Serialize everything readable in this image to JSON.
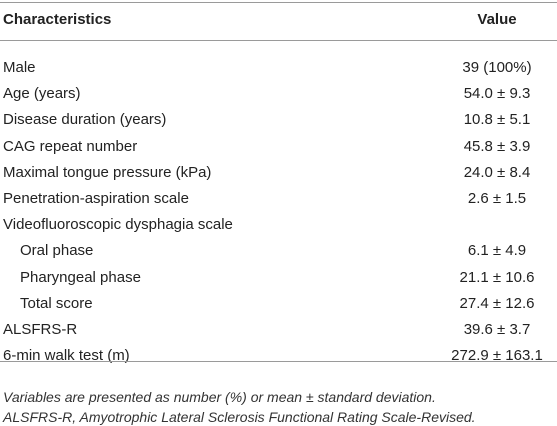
{
  "table": {
    "header": [
      "Characteristics",
      "Value"
    ],
    "rows": [
      {
        "label": "Male",
        "value": "39 (100%)"
      },
      {
        "label": "Age (years)",
        "value": "54.0 ± 9.3"
      },
      {
        "label": "Disease duration (years)",
        "value": "10.8 ± 5.1"
      },
      {
        "label": "CAG repeat number",
        "value": "45.8 ± 3.9"
      },
      {
        "label": "Maximal tongue pressure (kPa)",
        "value": "24.0 ± 8.4"
      },
      {
        "label": "Penetration-aspiration scale",
        "value": "2.6 ± 1.5"
      },
      {
        "label": "Videofluoroscopic dysphagia scale",
        "subrows": [
          {
            "label": "Oral phase",
            "value": "6.1 ± 4.9"
          },
          {
            "label": "Pharyngeal phase",
            "value": "21.1 ± 10.6"
          },
          {
            "label": "Total score",
            "value": "27.4 ± 12.6"
          }
        ]
      },
      {
        "label": "ALSFRS-R",
        "value": "39.6 ± 3.7"
      },
      {
        "label": "6-min walk test (m)",
        "value": "272.9 ± 163.1"
      }
    ]
  },
  "footnotes": [
    "Variables are presented as number (%) or mean ± standard deviation.",
    "ALSFRS-R, Amyotrophic Lateral Sclerosis Functional Rating Scale-Revised."
  ]
}
